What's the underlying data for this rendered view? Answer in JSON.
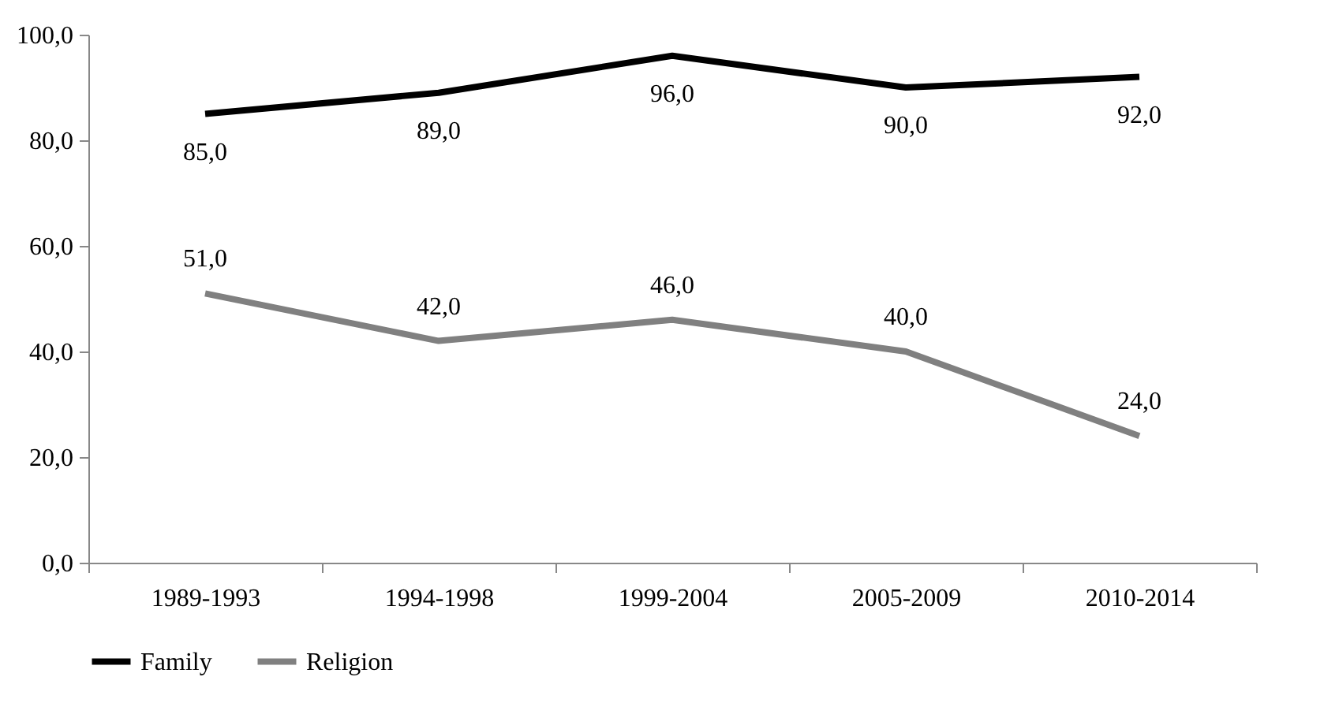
{
  "chart_data": {
    "type": "line",
    "categories": [
      "1989-1993",
      "1994-1998",
      "1999-2004",
      "2005-2009",
      "2010-2014"
    ],
    "series": [
      {
        "name": "Family",
        "color": "#000000",
        "values": [
          85,
          89,
          96,
          90,
          92
        ],
        "value_labels": [
          "85,0",
          "89,0",
          "96,0",
          "90,0",
          "92,0"
        ]
      },
      {
        "name": "Religion",
        "color": "#808080",
        "values": [
          51,
          42,
          46,
          40,
          24
        ],
        "value_labels": [
          "51,0",
          "42,0",
          "46,0",
          "40,0",
          "24,0"
        ]
      }
    ],
    "ylim": [
      0,
      100
    ],
    "yticks": [
      {
        "value": 0,
        "label": "0,0"
      },
      {
        "value": 20,
        "label": "20,0"
      },
      {
        "value": 40,
        "label": "40,0"
      },
      {
        "value": 60,
        "label": "60,0"
      },
      {
        "value": 80,
        "label": "80,0"
      },
      {
        "value": 100,
        "label": "100,0"
      }
    ],
    "legend": "bottom"
  }
}
